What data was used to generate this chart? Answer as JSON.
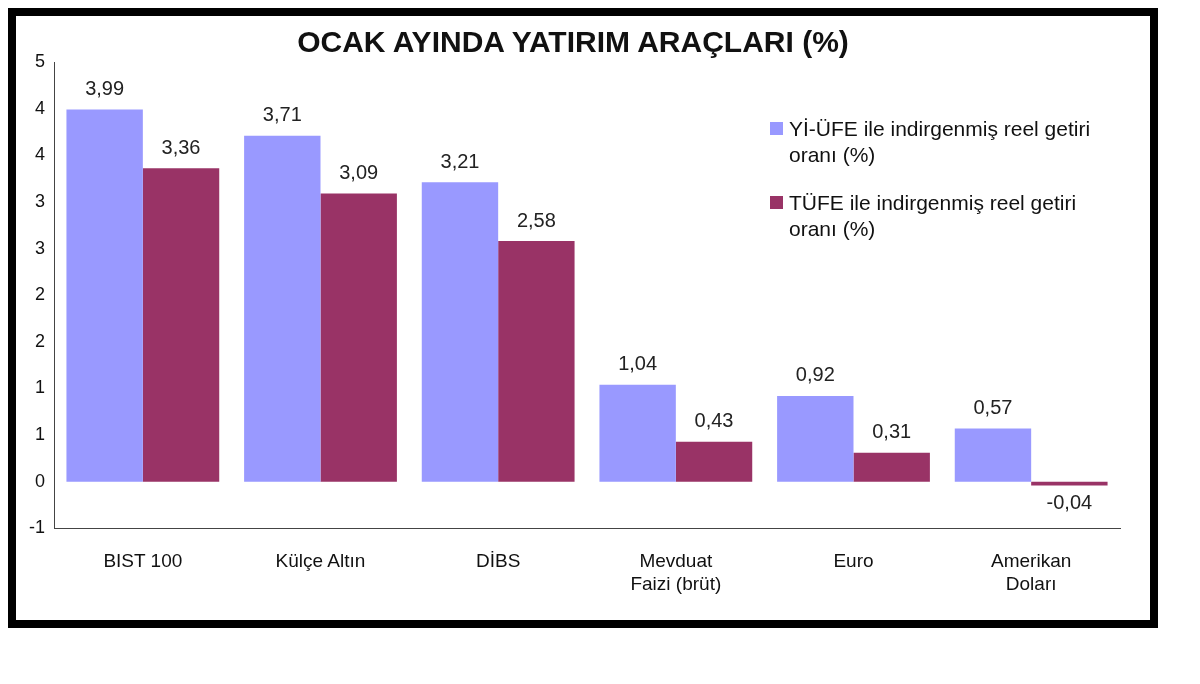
{
  "chart_data": {
    "type": "bar",
    "title": "OCAK AYINDA YATIRIM ARAÇLARI (%)",
    "categories": [
      "BIST 100",
      "Külçe Altın",
      "DİBS",
      "Mevduat Faizi (brüt)",
      "Euro",
      "Amerikan Doları"
    ],
    "series": [
      {
        "name": "Yİ-ÜFE ile indirgenmiş reel getiri oranı (%)",
        "color": "#9999ff",
        "values": [
          3.99,
          3.71,
          3.21,
          1.04,
          0.92,
          0.57
        ],
        "value_labels": [
          "3,99",
          "3,71",
          "3,21",
          "1,04",
          "0,92",
          "0,57"
        ]
      },
      {
        "name": "TÜFE ile indirgenmiş reel getiri oranı (%)",
        "color": "#993366",
        "values": [
          3.36,
          3.09,
          2.58,
          0.43,
          0.31,
          -0.04
        ],
        "value_labels": [
          "3,36",
          "3,09",
          "2,58",
          "0,43",
          "0,31",
          "-0,04"
        ]
      }
    ],
    "ylim": [
      -0.5,
      4.5
    ],
    "yticks": [
      {
        "value": -0.5,
        "label": "-1"
      },
      0,
      {
        "value": 0.5,
        "label": "1"
      },
      1,
      {
        "value": 1.5,
        "label": "2"
      },
      2,
      {
        "value": 2.5,
        "label": "3"
      },
      3,
      {
        "value": 3.5,
        "label": "4"
      },
      4,
      {
        "value": 4.5,
        "label": "5"
      }
    ],
    "grid": false,
    "legend": "top right"
  }
}
